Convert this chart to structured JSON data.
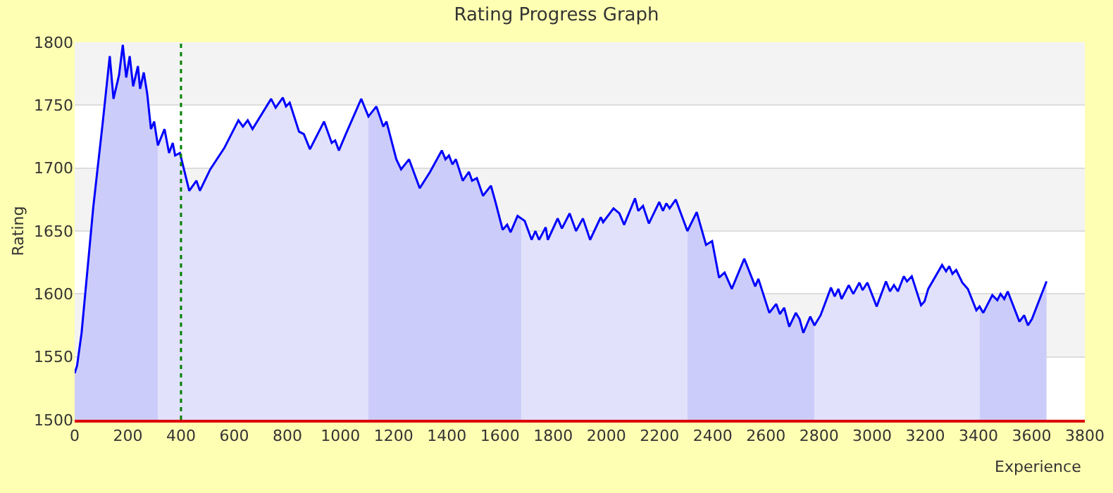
{
  "chart_data": {
    "type": "line",
    "title": "Rating Progress Graph",
    "xlabel": "Experience",
    "ylabel": "Rating",
    "xlim": [
      0,
      3800
    ],
    "xticks": [
      0,
      200,
      400,
      600,
      800,
      1000,
      1200,
      1400,
      1600,
      1800,
      2000,
      2200,
      2400,
      2600,
      2800,
      3000,
      3200,
      3400,
      3600,
      3800
    ],
    "ylim": [
      1500,
      1800
    ],
    "yticks": [
      1500,
      1550,
      1600,
      1650,
      1700,
      1750,
      1800
    ],
    "grid": "y",
    "marker": "none",
    "line_style": "solid",
    "series": [
      {
        "type": "area",
        "color": "#ccccfa",
        "x": [
          0,
          9,
          26,
          70,
          106,
          132,
          146,
          167,
          181,
          194,
          207,
          220,
          238,
          246,
          260,
          273,
          287,
          299,
          313
        ],
        "values": [
          1537,
          1543,
          1569,
          1669,
          1737,
          1789,
          1755,
          1774,
          1798,
          1772,
          1789,
          1765,
          1781,
          1763,
          1776,
          1759,
          1731,
          1737,
          1718
        ]
      },
      {
        "type": "area",
        "color": "#e1e1fb",
        "x": [
          313,
          338,
          355,
          369,
          378,
          396,
          431,
          458,
          471,
          510,
          563,
          616,
          633,
          651,
          669,
          739,
          756,
          783,
          795,
          809,
          844,
          862,
          885,
          938,
          967,
          980,
          994,
          1020,
          1078,
          1105
        ],
        "values": [
          1718,
          1731,
          1712,
          1720,
          1710,
          1712,
          1682,
          1690,
          1682,
          1699,
          1716,
          1738,
          1733,
          1738,
          1731,
          1755,
          1748,
          1756,
          1749,
          1752,
          1729,
          1727,
          1715,
          1737,
          1720,
          1722,
          1714,
          1727,
          1755,
          1741
        ]
      },
      {
        "type": "area",
        "color": "#ccccfa",
        "x": [
          1105,
          1135,
          1161,
          1173,
          1210,
          1228,
          1258,
          1298,
          1337,
          1381,
          1395,
          1408,
          1421,
          1434,
          1460,
          1483,
          1495,
          1513,
          1536,
          1566,
          1583,
          1610,
          1627,
          1640,
          1666,
          1680
        ],
        "values": [
          1741,
          1749,
          1733,
          1737,
          1707,
          1699,
          1707,
          1684,
          1697,
          1714,
          1707,
          1710,
          1703,
          1707,
          1690,
          1697,
          1690,
          1692,
          1678,
          1686,
          1673,
          1651,
          1655,
          1649,
          1662,
          1660
        ]
      },
      {
        "type": "area",
        "color": "#e1e1fb",
        "x": [
          1680,
          1693,
          1719,
          1733,
          1747,
          1772,
          1780,
          1817,
          1833,
          1862,
          1886,
          1912,
          1939,
          1979,
          1988,
          2027,
          2049,
          2067,
          2108,
          2120,
          2138,
          2160,
          2199,
          2213,
          2226,
          2238,
          2261,
          2305
        ],
        "values": [
          1660,
          1658,
          1643,
          1650,
          1643,
          1653,
          1643,
          1660,
          1652,
          1664,
          1650,
          1660,
          1643,
          1661,
          1657,
          1668,
          1664,
          1655,
          1676,
          1666,
          1670,
          1656,
          1673,
          1666,
          1672,
          1668,
          1675,
          1650
        ]
      },
      {
        "type": "area",
        "color": "#ccccfa",
        "x": [
          2305,
          2340,
          2375,
          2398,
          2424,
          2445,
          2472,
          2519,
          2560,
          2572,
          2613,
          2639,
          2653,
          2669,
          2688,
          2713,
          2727,
          2741,
          2767,
          2783
        ],
        "values": [
          1650,
          1665,
          1639,
          1642,
          1613,
          1617,
          1604,
          1628,
          1606,
          1612,
          1585,
          1592,
          1584,
          1589,
          1574,
          1585,
          1580,
          1569,
          1582,
          1575
        ]
      },
      {
        "type": "area",
        "color": "#e1e1fb",
        "x": [
          2783,
          2806,
          2845,
          2859,
          2873,
          2885,
          2912,
          2929,
          2952,
          2964,
          2982,
          3017,
          3052,
          3067,
          3082,
          3097,
          3119,
          3131,
          3149,
          3184,
          3197,
          3211,
          3263,
          3278,
          3290,
          3302,
          3316,
          3339,
          3360,
          3392,
          3404
        ],
        "values": [
          1575,
          1583,
          1605,
          1598,
          1604,
          1596,
          1607,
          1600,
          1609,
          1603,
          1609,
          1590,
          1610,
          1602,
          1607,
          1602,
          1614,
          1610,
          1614,
          1591,
          1594,
          1604,
          1623,
          1618,
          1622,
          1616,
          1619,
          1609,
          1604,
          1587,
          1590
        ]
      },
      {
        "type": "area",
        "color": "#ccccfa",
        "x": [
          3404,
          3418,
          3452,
          3471,
          3483,
          3497,
          3510,
          3554,
          3572,
          3586,
          3601,
          3656
        ],
        "values": [
          1590,
          1585,
          1599,
          1595,
          1600,
          1596,
          1602,
          1578,
          1583,
          1575,
          1580,
          1610
        ]
      },
      {
        "color": "#0000ff",
        "x": [
          0,
          9,
          26,
          70,
          106,
          132,
          146,
          167,
          181,
          194,
          207,
          220,
          238,
          246,
          260,
          273,
          287,
          299,
          313,
          338,
          355,
          369,
          378,
          396,
          431,
          458,
          471,
          510,
          563,
          616,
          633,
          651,
          669,
          739,
          756,
          783,
          795,
          809,
          844,
          862,
          885,
          938,
          967,
          980,
          994,
          1020,
          1078,
          1105,
          1135,
          1161,
          1173,
          1210,
          1228,
          1258,
          1298,
          1337,
          1381,
          1395,
          1408,
          1421,
          1434,
          1460,
          1483,
          1495,
          1513,
          1536,
          1566,
          1583,
          1610,
          1627,
          1640,
          1666,
          1680,
          1693,
          1719,
          1733,
          1747,
          1772,
          1780,
          1817,
          1833,
          1862,
          1886,
          1912,
          1939,
          1979,
          1988,
          2027,
          2049,
          2067,
          2108,
          2120,
          2138,
          2160,
          2199,
          2213,
          2226,
          2238,
          2261,
          2305,
          2340,
          2375,
          2398,
          2424,
          2445,
          2472,
          2519,
          2560,
          2572,
          2613,
          2639,
          2653,
          2669,
          2688,
          2713,
          2727,
          2741,
          2767,
          2783,
          2806,
          2845,
          2859,
          2873,
          2885,
          2912,
          2929,
          2952,
          2964,
          2982,
          3017,
          3052,
          3067,
          3082,
          3097,
          3119,
          3131,
          3149,
          3184,
          3197,
          3211,
          3263,
          3278,
          3290,
          3302,
          3316,
          3339,
          3360,
          3392,
          3404,
          3418,
          3452,
          3471,
          3483,
          3497,
          3510,
          3554,
          3572,
          3586,
          3601,
          3656
        ],
        "values": [
          1537,
          1543,
          1569,
          1669,
          1737,
          1789,
          1755,
          1774,
          1798,
          1772,
          1789,
          1765,
          1781,
          1763,
          1776,
          1759,
          1731,
          1737,
          1718,
          1731,
          1712,
          1720,
          1710,
          1712,
          1682,
          1690,
          1682,
          1699,
          1716,
          1738,
          1733,
          1738,
          1731,
          1755,
          1748,
          1756,
          1749,
          1752,
          1729,
          1727,
          1715,
          1737,
          1720,
          1722,
          1714,
          1727,
          1755,
          1741,
          1749,
          1733,
          1737,
          1707,
          1699,
          1707,
          1684,
          1697,
          1714,
          1707,
          1710,
          1703,
          1707,
          1690,
          1697,
          1690,
          1692,
          1678,
          1686,
          1673,
          1651,
          1655,
          1649,
          1662,
          1660,
          1658,
          1643,
          1650,
          1643,
          1653,
          1643,
          1660,
          1652,
          1664,
          1650,
          1660,
          1643,
          1661,
          1657,
          1668,
          1664,
          1655,
          1676,
          1666,
          1670,
          1656,
          1673,
          1666,
          1672,
          1668,
          1675,
          1650,
          1665,
          1639,
          1642,
          1613,
          1617,
          1604,
          1628,
          1606,
          1612,
          1585,
          1592,
          1584,
          1589,
          1574,
          1585,
          1580,
          1569,
          1582,
          1575,
          1583,
          1605,
          1598,
          1604,
          1596,
          1607,
          1600,
          1609,
          1603,
          1609,
          1590,
          1610,
          1602,
          1607,
          1602,
          1614,
          1610,
          1614,
          1591,
          1594,
          1604,
          1623,
          1618,
          1622,
          1616,
          1619,
          1609,
          1604,
          1587,
          1590,
          1585,
          1599,
          1595,
          1600,
          1596,
          1602,
          1578,
          1583,
          1575,
          1580,
          1610
        ]
      }
    ],
    "bands": [
      {
        "axis": "y",
        "from": 1550,
        "to": 1600,
        "color": "#f3f3f3"
      },
      {
        "axis": "y",
        "from": 1650,
        "to": 1700,
        "color": "#f3f3f3"
      },
      {
        "axis": "y",
        "from": 1750,
        "to": 1800,
        "color": "#f3f3f3"
      }
    ],
    "ref_lines": [
      {
        "axis": "x",
        "value": 400,
        "color": "#008000",
        "line_style": "dotted"
      }
    ]
  }
}
